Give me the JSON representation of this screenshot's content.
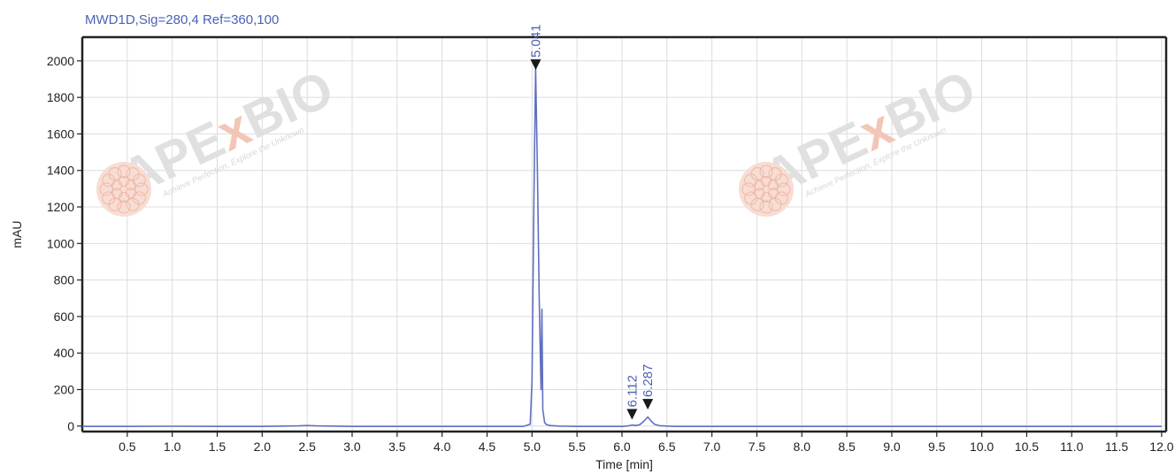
{
  "chart_data": {
    "type": "line",
    "title": "MWD1D,Sig=280,4  Ref=360,100",
    "xlabel": "Time [min]",
    "ylabel": "mAU",
    "xlim": [
      0,
      12.05
    ],
    "ylim": [
      -30,
      2130
    ],
    "x_ticks": [
      0.5,
      1.0,
      1.5,
      2.0,
      2.5,
      3.0,
      3.5,
      4.0,
      4.5,
      5.0,
      5.5,
      6.0,
      6.5,
      7.0,
      7.5,
      8.0,
      8.5,
      9.0,
      9.5,
      10.0,
      10.5,
      11.0,
      11.5,
      12.0
    ],
    "x_tick_labels": [
      "0.5",
      "1.0",
      "1.5",
      "2.0",
      "2.5",
      "3.0",
      "3.5",
      "4.0",
      "4.5",
      "5.0",
      "5.5",
      "6.0",
      "6.5",
      "7.0",
      "7.5",
      "8.0",
      "8.5",
      "9.0",
      "9.5",
      "10.0",
      "10.5",
      "11.0",
      "11.5",
      "12.0"
    ],
    "y_ticks": [
      0,
      200,
      400,
      600,
      800,
      1000,
      1200,
      1400,
      1600,
      1800,
      2000
    ],
    "y_tick_labels": [
      "0",
      "200",
      "400",
      "600",
      "800",
      "1000",
      "1200",
      "1400",
      "1600",
      "1800",
      "2000"
    ],
    "grid": true,
    "series": [
      {
        "color": "#6070c0",
        "x": [
          0.0,
          0.5,
          1.0,
          1.5,
          2.0,
          2.4,
          2.5,
          2.6,
          3.0,
          3.5,
          4.0,
          4.5,
          4.9,
          4.98,
          5.0,
          5.02,
          5.04,
          5.06,
          5.08,
          5.1,
          5.11,
          5.12,
          5.14,
          5.16,
          5.2,
          5.3,
          5.5,
          6.0,
          6.05,
          6.1,
          6.112,
          6.15,
          6.2,
          6.25,
          6.287,
          6.32,
          6.36,
          6.42,
          6.6,
          7.0,
          7.5,
          8.0,
          9.0,
          10.0,
          11.0,
          12.0
        ],
        "y": [
          -2,
          -2,
          -1,
          -2,
          -2,
          1,
          3,
          1,
          -2,
          -2,
          -2,
          -2,
          -2,
          10,
          250,
          1200,
          1960,
          1400,
          700,
          200,
          640,
          90,
          20,
          8,
          3,
          0,
          -2,
          -2,
          0,
          4,
          6,
          3,
          8,
          30,
          50,
          30,
          10,
          2,
          -2,
          -2,
          -2,
          -2,
          -2,
          -2,
          -2,
          -2
        ]
      }
    ],
    "peaks": [
      {
        "time": 5.041,
        "label": "5.041",
        "marker_y": 1960
      },
      {
        "time": 6.112,
        "label": "6.112",
        "marker_y": 45
      },
      {
        "time": 6.287,
        "label": "6.287",
        "marker_y": 100
      }
    ],
    "watermarks": [
      {
        "brand_a": "APE",
        "brand_x": "x",
        "brand_b": "BIO",
        "slogan": "Achieve Perfection, Explore the Unknown"
      },
      {
        "brand_a": "APE",
        "brand_x": "x",
        "brand_b": "BIO",
        "slogan": "Achieve Perfection, Explore the Unknown"
      }
    ]
  }
}
